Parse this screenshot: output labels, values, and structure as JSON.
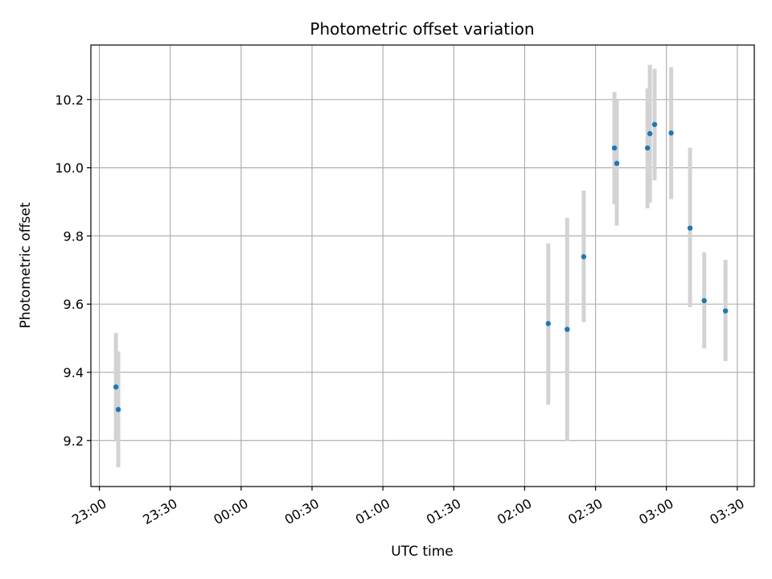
{
  "chart_data": {
    "type": "scatter",
    "title": "Photometric offset variation",
    "xlabel": "UTC time",
    "ylabel": "Photometric offset",
    "x_is_time": true,
    "xlim": [
      "22:56",
      "23:36+4h"
    ],
    "xlim_hours": [
      22.94,
      27.62
    ],
    "ylim": [
      9.065,
      10.36
    ],
    "grid": true,
    "x_ticks": [
      {
        "label": "23:00",
        "hours": 23.0
      },
      {
        "label": "23:30",
        "hours": 23.5
      },
      {
        "label": "00:00",
        "hours": 24.0
      },
      {
        "label": "00:30",
        "hours": 24.5
      },
      {
        "label": "01:00",
        "hours": 25.0
      },
      {
        "label": "01:30",
        "hours": 25.5
      },
      {
        "label": "02:00",
        "hours": 26.0
      },
      {
        "label": "02:30",
        "hours": 26.5
      },
      {
        "label": "03:00",
        "hours": 27.0
      },
      {
        "label": "03:30",
        "hours": 27.5
      }
    ],
    "y_ticks": [
      {
        "label": "9.2",
        "value": 9.2
      },
      {
        "label": "9.4",
        "value": 9.4
      },
      {
        "label": "9.6",
        "value": 9.6
      },
      {
        "label": "9.8",
        "value": 9.8
      },
      {
        "label": "10.0",
        "value": 10.0
      },
      {
        "label": "10.2",
        "value": 10.2
      }
    ],
    "series": [
      {
        "marker_color": "#1f77b4",
        "errorbar_color": "#d3d3d3",
        "points": [
          {
            "time": "23:07",
            "y": 9.357,
            "lo": 9.197,
            "hi": 9.515
          },
          {
            "time": "23:08",
            "y": 9.291,
            "lo": 9.122,
            "hi": 9.461
          },
          {
            "time": "02:10",
            "y": 9.543,
            "lo": 9.305,
            "hi": 9.778
          },
          {
            "time": "02:18",
            "y": 9.526,
            "lo": 9.199,
            "hi": 9.853
          },
          {
            "time": "02:25",
            "y": 9.739,
            "lo": 9.547,
            "hi": 9.933
          },
          {
            "time": "02:38",
            "y": 10.058,
            "lo": 9.893,
            "hi": 10.222
          },
          {
            "time": "02:39",
            "y": 10.013,
            "lo": 9.83,
            "hi": 10.198
          },
          {
            "time": "02:52",
            "y": 10.058,
            "lo": 9.881,
            "hi": 10.233
          },
          {
            "time": "02:53",
            "y": 10.1,
            "lo": 9.898,
            "hi": 10.302
          },
          {
            "time": "02:55",
            "y": 10.127,
            "lo": 9.963,
            "hi": 10.29
          },
          {
            "time": "03:02",
            "y": 10.102,
            "lo": 9.908,
            "hi": 10.295
          },
          {
            "time": "03:10",
            "y": 9.823,
            "lo": 9.591,
            "hi": 10.059
          },
          {
            "time": "03:16",
            "y": 9.61,
            "lo": 9.47,
            "hi": 9.752
          },
          {
            "time": "03:25",
            "y": 9.58,
            "lo": 9.433,
            "hi": 9.73
          }
        ]
      }
    ]
  }
}
